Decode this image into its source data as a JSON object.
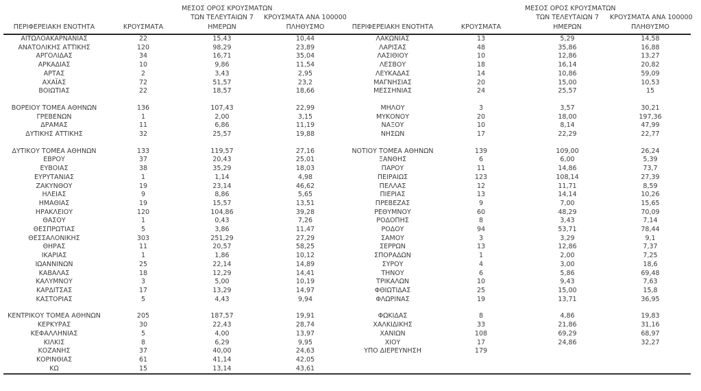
{
  "table": {
    "headers": {
      "region": "ΠΕΡΙΦΕΡΕΙΑΚΗ ΕΝΟΤΗΤΑ",
      "cases": "ΚΡΟΥΣΜΑΤΑ",
      "avg7_line1": "ΜΕΣΟΣ ΟΡΟΣ ΚΡΟΥΣΜΑΤΩΝ",
      "avg7_line2": "ΤΩΝ ΤΕΛΕΥΤΑΙΩΝ 7",
      "avg7_line3": "ΗΜΕΡΩΝ",
      "per100k_line1": "ΚΡΟΥΣΜΑΤΑ ΑΝΑ 100000",
      "per100k_line2": "ΠΛΗΘΥΣΜΟ"
    },
    "rows": [
      {
        "l": [
          "ΑΙΤΩΛΟΑΚΑΡΝΑΝΙΑΣ",
          "22",
          "15,43",
          "10,44"
        ],
        "r": [
          "ΛΑΚΩΝΙΑΣ",
          "13",
          "5,29",
          "14,58"
        ]
      },
      {
        "l": [
          "ΑΝΑΤΟΛΙΚΗΣ ΑΤΤΙΚΗΣ",
          "120",
          "98,29",
          "23,89"
        ],
        "r": [
          "ΛΑΡΙΣΑΣ",
          "48",
          "35,86",
          "16,88"
        ]
      },
      {
        "l": [
          "ΑΡΓΟΛΙΔΑΣ",
          "34",
          "16,71",
          "35,04"
        ],
        "r": [
          "ΛΑΣΙΘΙΟΥ",
          "10",
          "12,86",
          "13,27"
        ]
      },
      {
        "l": [
          "ΑΡΚΑΔΙΑΣ",
          "10",
          "9,86",
          "11,54"
        ],
        "r": [
          "ΛΕΣΒΟΥ",
          "18",
          "16,14",
          "20,82"
        ]
      },
      {
        "l": [
          "ΑΡΤΑΣ",
          "2",
          "3,43",
          "2,95"
        ],
        "r": [
          "ΛΕΥΚΑΔΑΣ",
          "14",
          "10,86",
          "59,09"
        ]
      },
      {
        "l": [
          "ΑΧΑΪΑΣ",
          "72",
          "51,57",
          "23,2"
        ],
        "r": [
          "ΜΑΓΝΗΣΙΑΣ",
          "20",
          "15,00",
          "10,53"
        ]
      },
      {
        "l": [
          "ΒΟΙΩΤΙΑΣ",
          "22",
          "18,57",
          "18,66"
        ],
        "r": [
          "ΜΕΣΣΗΝΙΑΣ",
          "24",
          "25,57",
          "15"
        ]
      },
      {
        "spacer": true
      },
      {
        "l": [
          "ΒΟΡΕΙΟΥ ΤΟΜΕΑ ΑΘΗΝΩΝ",
          "136",
          "107,43",
          "22,99"
        ],
        "r": [
          "ΜΗΛΟΥ",
          "3",
          "3,57",
          "30,21"
        ]
      },
      {
        "l": [
          "ΓΡΕΒΕΝΩΝ",
          "1",
          "2,00",
          "3,15"
        ],
        "r": [
          "ΜΥΚΟΝΟΥ",
          "20",
          "18,00",
          "197,36"
        ]
      },
      {
        "l": [
          "ΔΡΑΜΑΣ",
          "11",
          "6,86",
          "11,19"
        ],
        "r": [
          "ΝΑΞΟΥ",
          "10",
          "8,14",
          "47,99"
        ]
      },
      {
        "l": [
          "ΔΥΤΙΚΗΣ ΑΤΤΙΚΗΣ",
          "32",
          "25,57",
          "19,88"
        ],
        "r": [
          "ΝΗΣΩΝ",
          "17",
          "22,29",
          "22,77"
        ]
      },
      {
        "spacer": true
      },
      {
        "l": [
          "ΔΥΤΙΚΟΥ ΤΟΜΕΑ ΑΘΗΝΩΝ",
          "133",
          "119,57",
          "27,16"
        ],
        "r": [
          "ΝΟΤΙΟΥ ΤΟΜΕΑ ΑΘΗΝΩΝ",
          "139",
          "109,00",
          "26,24"
        ]
      },
      {
        "l": [
          "ΕΒΡΟΥ",
          "37",
          "20,43",
          "25,01"
        ],
        "r": [
          "ΞΑΝΘΗΣ",
          "6",
          "6,00",
          "5,39"
        ]
      },
      {
        "l": [
          "ΕΥΒΟΙΑΣ",
          "38",
          "35,29",
          "18,03"
        ],
        "r": [
          "ΠΑΡΟΥ",
          "11",
          "14,86",
          "73,7"
        ]
      },
      {
        "l": [
          "ΕΥΡΥΤΑΝΙΑΣ",
          "1",
          "1,14",
          "4,98"
        ],
        "r": [
          "ΠΕΙΡΑΙΩΣ",
          "123",
          "108,14",
          "27,39"
        ]
      },
      {
        "l": [
          "ΖΑΚΥΝΘΟΥ",
          "19",
          "23,14",
          "46,62"
        ],
        "r": [
          "ΠΕΛΛΑΣ",
          "12",
          "11,71",
          "8,59"
        ]
      },
      {
        "l": [
          "ΗΛΕΙΑΣ",
          "9",
          "8,86",
          "5,65"
        ],
        "r": [
          "ΠΙΕΡΙΑΣ",
          "13",
          "14,14",
          "10,26"
        ]
      },
      {
        "l": [
          "ΗΜΑΘΙΑΣ",
          "19",
          "15,57",
          "13,51"
        ],
        "r": [
          "ΠΡΕΒΕΖΑΣ",
          "9",
          "7,00",
          "15,65"
        ]
      },
      {
        "l": [
          "ΗΡΑΚΛΕΙΟΥ",
          "120",
          "104,86",
          "39,28"
        ],
        "r": [
          "ΡΕΘΥΜΝΟΥ",
          "60",
          "48,29",
          "70,09"
        ]
      },
      {
        "l": [
          "ΘΑΣΟΥ",
          "1",
          "0,43",
          "7,26"
        ],
        "r": [
          "ΡΟΔΟΠΗΣ",
          "8",
          "3,43",
          "7,14"
        ]
      },
      {
        "l": [
          "ΘΕΣΠΡΩΤΙΑΣ",
          "5",
          "3,86",
          "11,47"
        ],
        "r": [
          "ΡΟΔΟΥ",
          "94",
          "53,71",
          "78,44"
        ]
      },
      {
        "l": [
          "ΘΕΣΣΑΛΟΝΙΚΗΣ",
          "303",
          "251,29",
          "27,29"
        ],
        "r": [
          "ΣΑΜΟΥ",
          "3",
          "3,29",
          "9,1"
        ]
      },
      {
        "l": [
          "ΘΗΡΑΣ",
          "11",
          "20,57",
          "58,25"
        ],
        "r": [
          "ΣΕΡΡΩΝ",
          "13",
          "12,86",
          "7,37"
        ]
      },
      {
        "l": [
          "ΙΚΑΡΙΑΣ",
          "1",
          "1,86",
          "10,12"
        ],
        "r": [
          "ΣΠΟΡΑΔΩΝ",
          "1",
          "2,00",
          "7,25"
        ]
      },
      {
        "l": [
          "ΙΩΑΝΝΙΝΩΝ",
          "25",
          "22,14",
          "14,89"
        ],
        "r": [
          "ΣΥΡΟΥ",
          "4",
          "3,00",
          "18,6"
        ]
      },
      {
        "l": [
          "ΚΑΒΑΛΑΣ",
          "18",
          "12,29",
          "14,41"
        ],
        "r": [
          "ΤΗΝΟΥ",
          "6",
          "5,86",
          "69,48"
        ]
      },
      {
        "l": [
          "ΚΑΛΥΜΝΟΥ",
          "3",
          "5,00",
          "10,19"
        ],
        "r": [
          "ΤΡΙΚΑΛΩΝ",
          "10",
          "9,43",
          "7,63"
        ]
      },
      {
        "l": [
          "ΚΑΡΔΙΤΣΑΣ",
          "17",
          "13,29",
          "14,97"
        ],
        "r": [
          "ΦΘΙΩΤΙΔΑΣ",
          "25",
          "15,00",
          "15,8"
        ]
      },
      {
        "l": [
          "ΚΑΣΤΟΡΙΑΣ",
          "5",
          "4,43",
          "9,94"
        ],
        "r": [
          "ΦΛΩΡΙΝΑΣ",
          "19",
          "13,71",
          "36,95"
        ]
      },
      {
        "spacer": true
      },
      {
        "l": [
          "ΚΕΝΤΡΙΚΟΥ ΤΟΜΕΑ ΑΘΗΝΩΝ",
          "205",
          "187,57",
          "19,91"
        ],
        "r": [
          "ΦΩΚΙΔΑΣ",
          "8",
          "4,86",
          "19,83"
        ]
      },
      {
        "l": [
          "ΚΕΡΚΥΡΑΣ",
          "30",
          "22,43",
          "28,74"
        ],
        "r": [
          "ΧΑΛΚΙΔΙΚΗΣ",
          "33",
          "21,86",
          "31,16"
        ]
      },
      {
        "l": [
          "ΚΕΦΑΛΛΗΝΙΑΣ",
          "5",
          "4,00",
          "13,97"
        ],
        "r": [
          "ΧΑΝΙΩΝ",
          "108",
          "69,29",
          "68,97"
        ]
      },
      {
        "l": [
          "ΚΙΛΚΙΣ",
          "8",
          "6,29",
          "9,95"
        ],
        "r": [
          "ΧΙΟΥ",
          "17",
          "24,86",
          "32,27"
        ]
      },
      {
        "l": [
          "ΚΟΖΑΝΗΣ",
          "37",
          "40,00",
          "24,63"
        ],
        "r": [
          "ΥΠΟ ΔΙΕΡΕΥΝΗΣΗ",
          "179",
          "",
          ""
        ]
      },
      {
        "l": [
          "ΚΟΡΙΝΘΙΑΣ",
          "61",
          "41,14",
          "42,05"
        ],
        "r": [
          "",
          "",
          "",
          ""
        ]
      },
      {
        "l": [
          "ΚΩ",
          "15",
          "13,14",
          "43,61"
        ],
        "r": [
          "",
          "",
          "",
          ""
        ]
      }
    ]
  }
}
